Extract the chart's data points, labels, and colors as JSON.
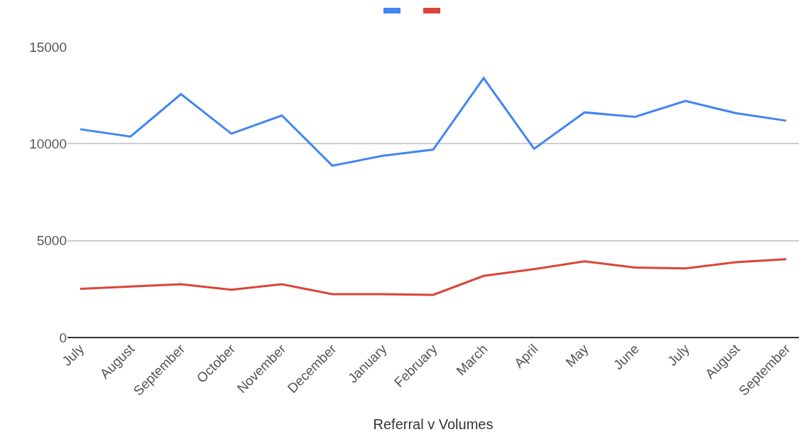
{
  "chart_data": {
    "type": "line",
    "xlabel": "Referral v Volumes",
    "categories": [
      "July",
      "August",
      "September",
      "October",
      "November",
      "December",
      "January",
      "February",
      "March",
      "April",
      "May",
      "June",
      "July",
      "August",
      "September"
    ],
    "series": [
      {
        "color": "#4285f4",
        "values": [
          10750,
          10370,
          12560,
          10520,
          11460,
          8870,
          9380,
          9700,
          13390,
          9740,
          11620,
          11390,
          12210,
          11580,
          11190
        ]
      },
      {
        "color": "#db4437",
        "values": [
          2510,
          2630,
          2750,
          2470,
          2750,
          2240,
          2240,
          2200,
          3180,
          3530,
          3930,
          3610,
          3570,
          3890,
          4040
        ]
      }
    ],
    "ylim": [
      0,
      15000
    ],
    "yticks": [
      0,
      5000,
      10000,
      15000
    ],
    "grid": "y",
    "marker": "none",
    "line_style": "solid"
  }
}
